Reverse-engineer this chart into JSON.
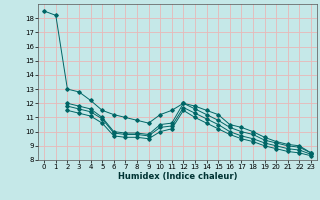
{
  "title": "",
  "xlabel": "Humidex (Indice chaleur)",
  "ylabel": "",
  "bg_color": "#c5e8e8",
  "grid_color": "#e8b8b8",
  "line_color": "#006666",
  "xlim": [
    -0.5,
    23.5
  ],
  "ylim": [
    8,
    19
  ],
  "yticks": [
    8,
    9,
    10,
    11,
    12,
    13,
    14,
    15,
    16,
    17,
    18
  ],
  "xticks": [
    0,
    1,
    2,
    3,
    4,
    5,
    6,
    7,
    8,
    9,
    10,
    11,
    12,
    13,
    14,
    15,
    16,
    17,
    18,
    19,
    20,
    21,
    22,
    23
  ],
  "series": [
    {
      "x": [
        0,
        1,
        2,
        3,
        4,
        5,
        6,
        7,
        8,
        9,
        10,
        11,
        12,
        13,
        14,
        15,
        16,
        17,
        18,
        19,
        20,
        21,
        22,
        23
      ],
      "y": [
        18.5,
        18.2,
        13.0,
        12.8,
        12.2,
        11.5,
        11.2,
        11.0,
        10.8,
        10.6,
        11.2,
        11.5,
        12.0,
        11.8,
        11.5,
        11.2,
        10.5,
        10.3,
        10.0,
        9.6,
        9.3,
        9.1,
        9.0,
        8.5
      ]
    },
    {
      "x": [
        2,
        3,
        4,
        5,
        6,
        7,
        8,
        9,
        10,
        11,
        12,
        13,
        14,
        15,
        16,
        17,
        18,
        19,
        20,
        21,
        22,
        23
      ],
      "y": [
        12.0,
        11.8,
        11.6,
        11.0,
        10.0,
        9.9,
        9.9,
        9.8,
        10.5,
        10.6,
        12.0,
        11.6,
        11.2,
        10.8,
        10.3,
        10.0,
        9.8,
        9.4,
        9.2,
        9.0,
        8.9,
        8.5
      ]
    },
    {
      "x": [
        2,
        3,
        4,
        5,
        6,
        7,
        8,
        9,
        10,
        11,
        12,
        13,
        14,
        15,
        16,
        17,
        18,
        19,
        20,
        21,
        22,
        23
      ],
      "y": [
        11.8,
        11.6,
        11.4,
        10.9,
        9.9,
        9.8,
        9.8,
        9.7,
        10.3,
        10.4,
        11.7,
        11.3,
        10.9,
        10.5,
        10.0,
        9.7,
        9.5,
        9.2,
        9.0,
        8.8,
        8.7,
        8.4
      ]
    },
    {
      "x": [
        2,
        3,
        4,
        5,
        6,
        7,
        8,
        9,
        10,
        11,
        12,
        13,
        14,
        15,
        16,
        17,
        18,
        19,
        20,
        21,
        22,
        23
      ],
      "y": [
        11.5,
        11.3,
        11.1,
        10.6,
        9.7,
        9.6,
        9.6,
        9.5,
        10.0,
        10.2,
        11.5,
        11.0,
        10.6,
        10.2,
        9.8,
        9.5,
        9.3,
        9.0,
        8.8,
        8.6,
        8.5,
        8.3
      ]
    }
  ]
}
